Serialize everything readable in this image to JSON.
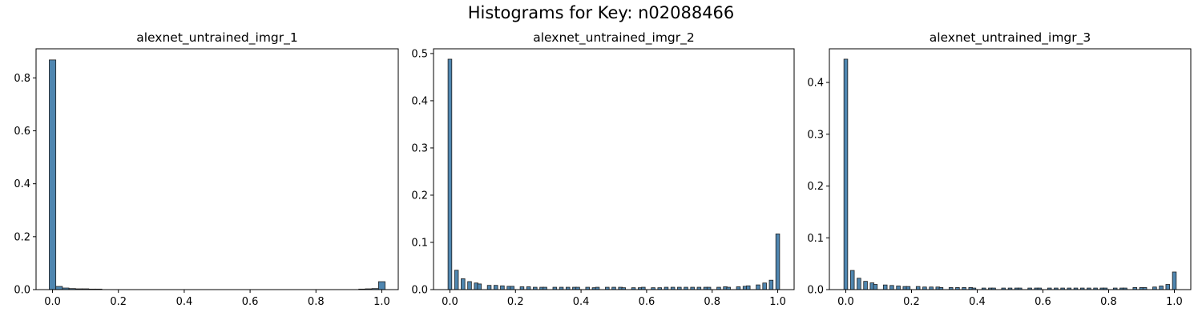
{
  "figure_title": "Histograms for Key: n02088466",
  "colors": {
    "bar_fill": "#4f86b0",
    "bar_edge": "#1f1f1f",
    "axis": "#000000"
  },
  "chart_data": [
    {
      "type": "bar",
      "title": "alexnet_untrained_imgr_1",
      "xlabel": "",
      "ylabel": "",
      "xlim": [
        -0.05,
        1.05
      ],
      "ylim": [
        0,
        0.91
      ],
      "xticks": [
        "0.0",
        "0.2",
        "0.4",
        "0.6",
        "0.8",
        "1.0"
      ],
      "yticks": [
        "0.0",
        "0.2",
        "0.4",
        "0.6",
        "0.8"
      ],
      "bin_width": 0.02,
      "x": [
        0.0,
        0.02,
        0.04,
        0.06,
        0.08,
        0.1,
        0.12,
        0.14,
        0.94,
        0.96,
        0.98,
        1.0
      ],
      "values": [
        0.868,
        0.012,
        0.006,
        0.004,
        0.003,
        0.003,
        0.002,
        0.002,
        0.002,
        0.003,
        0.004,
        0.03
      ]
    },
    {
      "type": "bar",
      "title": "alexnet_untrained_imgr_2",
      "xlabel": "",
      "ylabel": "",
      "xlim": [
        -0.05,
        1.05
      ],
      "ylim": [
        0,
        0.51
      ],
      "xticks": [
        "0.0",
        "0.2",
        "0.4",
        "0.6",
        "0.8",
        "1.0"
      ],
      "yticks": [
        "0.0",
        "0.1",
        "0.2",
        "0.3",
        "0.4",
        "0.5"
      ],
      "bin_width": 0.0115,
      "x": [
        0.0,
        0.02,
        0.04,
        0.06,
        0.08,
        0.09,
        0.12,
        0.14,
        0.16,
        0.18,
        0.19,
        0.22,
        0.24,
        0.26,
        0.28,
        0.29,
        0.32,
        0.34,
        0.36,
        0.38,
        0.39,
        0.42,
        0.44,
        0.45,
        0.48,
        0.5,
        0.52,
        0.53,
        0.56,
        0.58,
        0.59,
        0.62,
        0.64,
        0.66,
        0.68,
        0.7,
        0.72,
        0.74,
        0.76,
        0.78,
        0.79,
        0.82,
        0.84,
        0.85,
        0.88,
        0.9,
        0.91,
        0.94,
        0.96,
        0.98,
        1.0
      ],
      "values": [
        0.488,
        0.041,
        0.023,
        0.017,
        0.014,
        0.012,
        0.009,
        0.009,
        0.008,
        0.007,
        0.007,
        0.006,
        0.006,
        0.005,
        0.005,
        0.005,
        0.005,
        0.005,
        0.005,
        0.005,
        0.005,
        0.005,
        0.004,
        0.005,
        0.005,
        0.005,
        0.005,
        0.004,
        0.004,
        0.004,
        0.005,
        0.004,
        0.004,
        0.005,
        0.005,
        0.005,
        0.005,
        0.005,
        0.005,
        0.005,
        0.005,
        0.005,
        0.006,
        0.005,
        0.006,
        0.007,
        0.008,
        0.01,
        0.014,
        0.02,
        0.118
      ]
    },
    {
      "type": "bar",
      "title": "alexnet_untrained_imgr_3",
      "xlabel": "",
      "ylabel": "",
      "xlim": [
        -0.05,
        1.05
      ],
      "ylim": [
        0,
        0.465
      ],
      "xticks": [
        "0.0",
        "0.2",
        "0.4",
        "0.6",
        "0.8",
        "1.0"
      ],
      "yticks": [
        "0.0",
        "0.1",
        "0.2",
        "0.3",
        "0.4"
      ],
      "bin_width": 0.0115,
      "x": [
        0.0,
        0.02,
        0.04,
        0.06,
        0.08,
        0.09,
        0.12,
        0.14,
        0.16,
        0.18,
        0.19,
        0.22,
        0.24,
        0.26,
        0.28,
        0.29,
        0.32,
        0.34,
        0.36,
        0.38,
        0.39,
        0.42,
        0.44,
        0.45,
        0.48,
        0.5,
        0.52,
        0.53,
        0.56,
        0.58,
        0.59,
        0.62,
        0.64,
        0.66,
        0.68,
        0.7,
        0.72,
        0.74,
        0.76,
        0.78,
        0.79,
        0.82,
        0.84,
        0.85,
        0.88,
        0.9,
        0.91,
        0.94,
        0.96,
        0.98,
        1.0
      ],
      "values": [
        0.445,
        0.037,
        0.022,
        0.016,
        0.013,
        0.01,
        0.009,
        0.008,
        0.007,
        0.006,
        0.006,
        0.006,
        0.005,
        0.005,
        0.005,
        0.004,
        0.004,
        0.004,
        0.004,
        0.004,
        0.003,
        0.003,
        0.003,
        0.003,
        0.003,
        0.003,
        0.003,
        0.003,
        0.003,
        0.003,
        0.003,
        0.003,
        0.003,
        0.003,
        0.003,
        0.003,
        0.003,
        0.003,
        0.003,
        0.003,
        0.003,
        0.003,
        0.003,
        0.003,
        0.004,
        0.004,
        0.004,
        0.005,
        0.007,
        0.01,
        0.034
      ]
    }
  ]
}
